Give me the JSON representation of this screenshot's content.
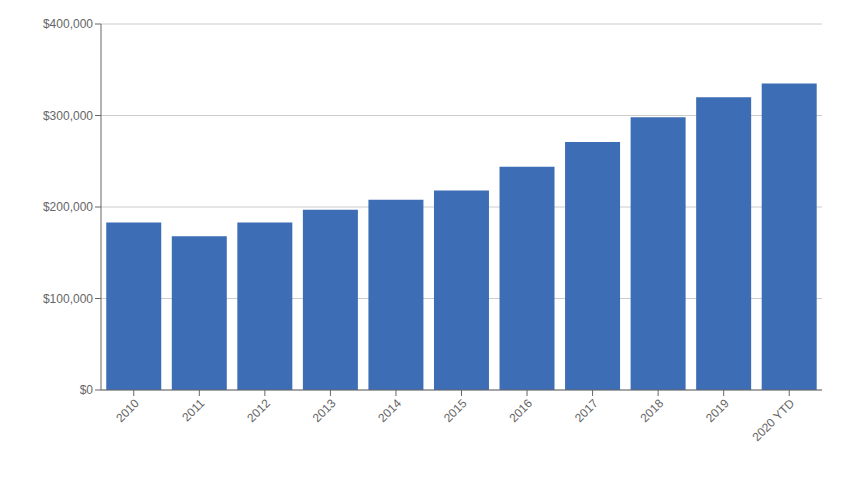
{
  "chart_data": {
    "type": "bar",
    "categories": [
      "2010",
      "2011",
      "2012",
      "2013",
      "2014",
      "2015",
      "2016",
      "2017",
      "2018",
      "2019",
      "2020 YTD"
    ],
    "values": [
      183000,
      168000,
      183000,
      197000,
      208000,
      218000,
      244000,
      271000,
      298000,
      320000,
      335000
    ],
    "color": "#3d6db5",
    "ylim": [
      0,
      400000
    ],
    "yticks": [
      {
        "value": 0,
        "label": "$0"
      },
      {
        "value": 100000,
        "label": "$100,000"
      },
      {
        "value": 200000,
        "label": "$200,000"
      },
      {
        "value": 300000,
        "label": "$300,000"
      },
      {
        "value": 400000,
        "label": "$400,000"
      }
    ],
    "grid": true
  }
}
